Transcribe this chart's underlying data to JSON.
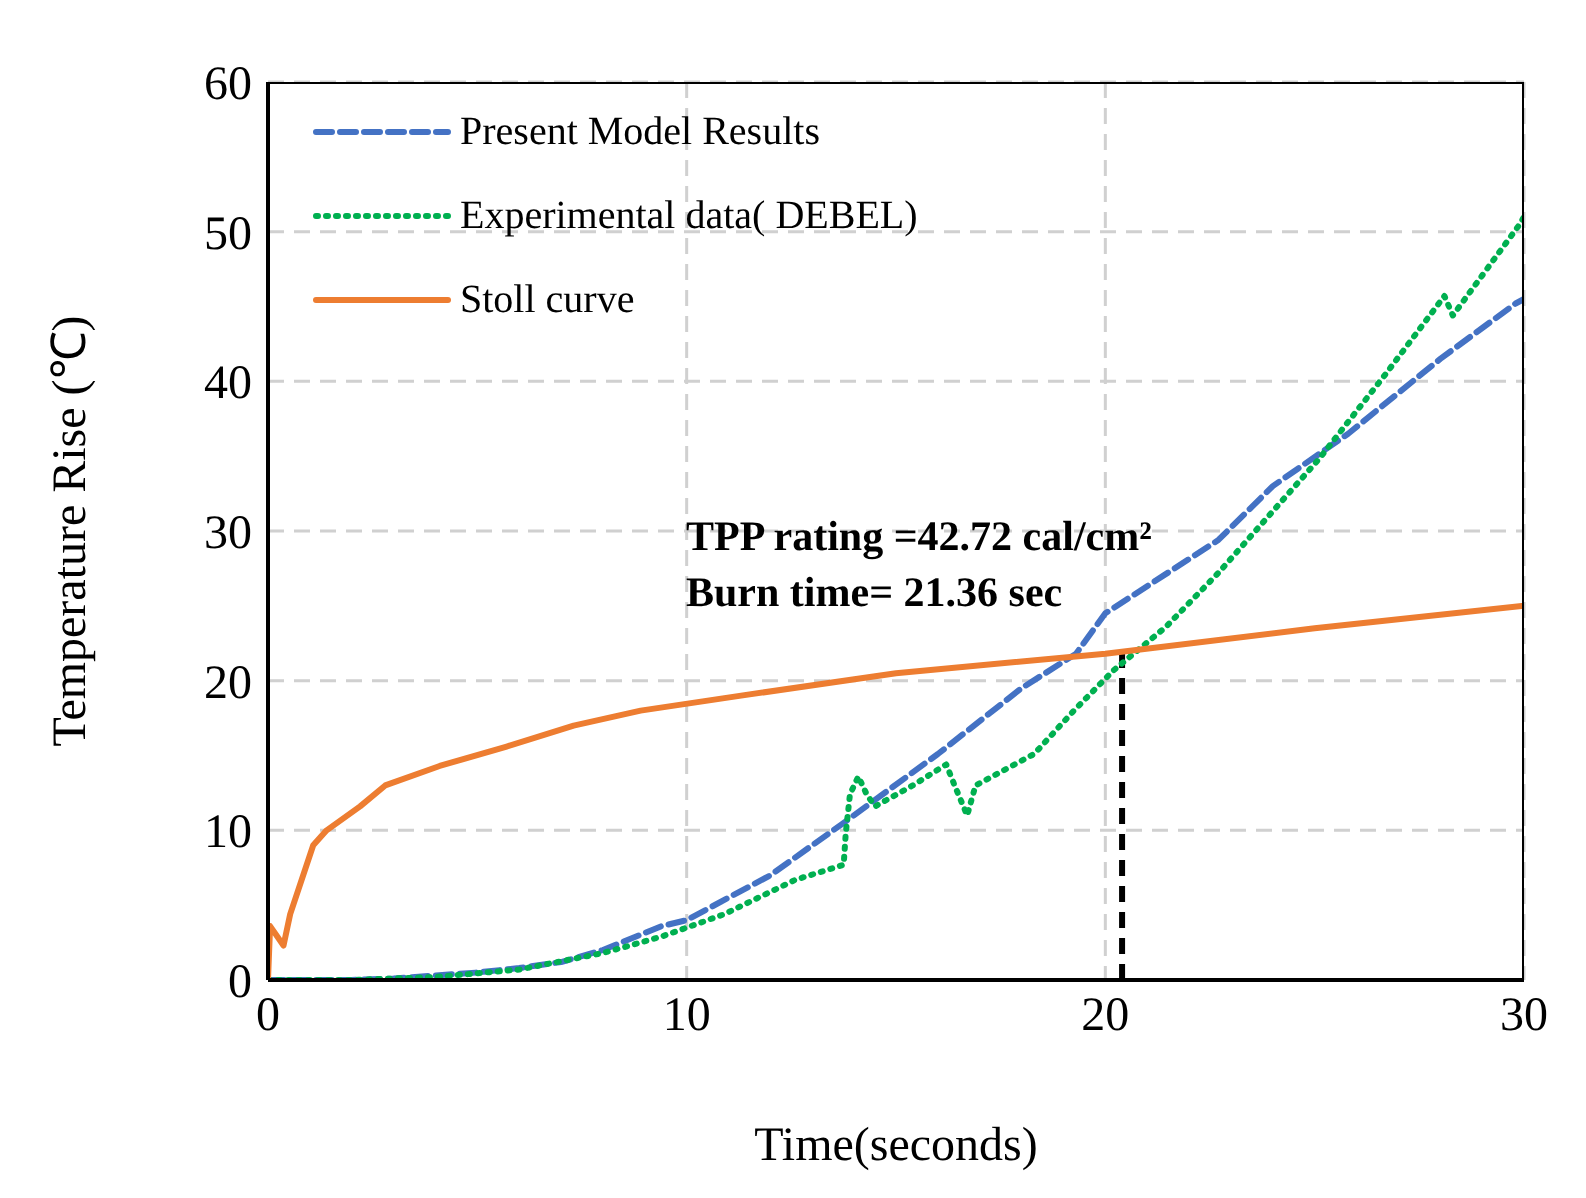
{
  "chart_data": {
    "type": "line",
    "xlabel": "Time(seconds)",
    "ylabel": "Temperature Rise (℃)",
    "xlim": [
      0,
      30
    ],
    "xticks": [
      0,
      10,
      20,
      30
    ],
    "ylim": [
      0,
      60
    ],
    "yticks": [
      0,
      10,
      20,
      30,
      40,
      50,
      60
    ],
    "grid": true,
    "legend": "top left",
    "marker": "none",
    "annotations": [
      "TPP rating =42.72 cal/cm²",
      "Burn time= 21.36 sec"
    ],
    "ref_lines": [
      {
        "axis": "x",
        "value": 20.4,
        "color": "#000000",
        "line_style": "dashed"
      }
    ],
    "series": [
      {
        "name": "Present Model Results",
        "color": "#4472c4",
        "line_style": "dashed",
        "x": [
          0,
          2,
          3,
          4,
          5,
          6,
          7,
          8,
          9.4,
          10,
          12,
          13.7,
          16,
          18,
          19.3,
          20,
          22.7,
          24,
          25.8,
          28,
          29.8,
          30
        ],
        "values": [
          0,
          0,
          0.1,
          0.3,
          0.5,
          0.8,
          1.2,
          2,
          3.6,
          4,
          7,
          10.4,
          15.1,
          19.5,
          21.8,
          24.5,
          29.4,
          33,
          36.5,
          41.5,
          45.2,
          45.5
        ]
      },
      {
        "name": "Experimental data( DEBEL)",
        "color": "#00b050",
        "line_style": "dotted",
        "x": [
          0,
          2,
          4,
          6,
          8,
          9.4,
          10.9,
          12.6,
          13.75,
          13.8,
          13.9,
          14.1,
          14.3,
          14.5,
          15.4,
          16.2,
          16.4,
          16.7,
          16.9,
          18.3,
          19.25,
          20.2,
          21.45,
          22.7,
          25.1,
          26.7,
          28.1,
          28.3,
          29.9,
          30
        ],
        "values": [
          0,
          0,
          0.2,
          0.7,
          1.8,
          2.9,
          4.4,
          6.7,
          7.7,
          9.8,
          12.4,
          13.6,
          12.4,
          11.6,
          13,
          14.4,
          13,
          11,
          13,
          15.1,
          18,
          20.7,
          23.6,
          27.2,
          34.8,
          40.5,
          45.7,
          44.4,
          50.5,
          51
        ]
      },
      {
        "name": "Stoll curve",
        "color": "#ed7d31",
        "line_style": "solid",
        "x": [
          0,
          0.05,
          0.37,
          0.53,
          1.08,
          1.4,
          2.2,
          2.8,
          4.1,
          5.7,
          7.3,
          8.9,
          11.3,
          15,
          20,
          25,
          30
        ],
        "values": [
          0,
          3.6,
          2.3,
          4.4,
          9,
          10,
          11.6,
          13,
          14.3,
          15.6,
          17,
          18,
          19,
          20.5,
          21.8,
          23.5,
          25
        ]
      }
    ]
  }
}
